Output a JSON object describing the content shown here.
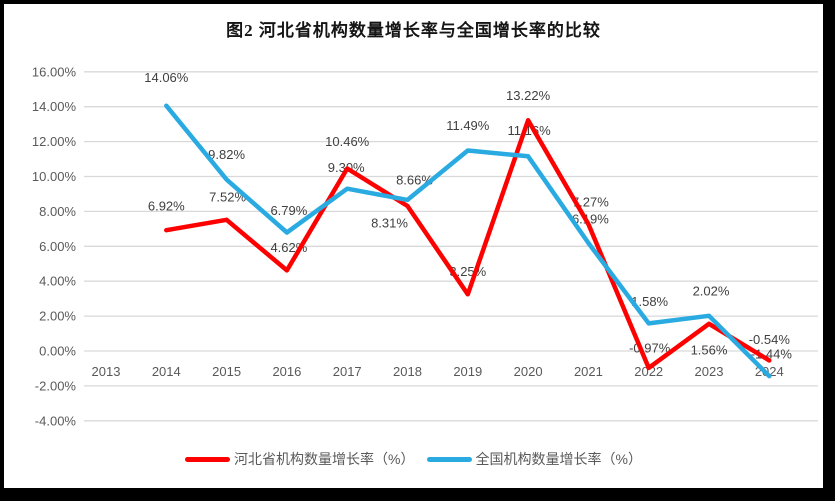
{
  "window": {
    "frame_color": "#000000",
    "canvas_color": "#ffffff"
  },
  "chart_data": {
    "type": "line",
    "title": "图2 河北省机构数量增长率与全国增长率的比较",
    "categories": [
      "2013",
      "2014",
      "2015",
      "2016",
      "2017",
      "2018",
      "2019",
      "2020",
      "2021",
      "2022",
      "2023",
      "2024"
    ],
    "y_axis": {
      "min": -4,
      "max": 16,
      "step": 2,
      "tick_labels": [
        "16.00%",
        "14.00%",
        "12.00%",
        "10.00%",
        "8.00%",
        "6.00%",
        "4.00%",
        "2.00%",
        "0.00%",
        "-2.00%",
        "-4.00%"
      ],
      "format": "0.00%"
    },
    "grid": true,
    "gridline_color": "#D9D9D9",
    "legend_position": "bottom",
    "series": [
      {
        "name": "河北省机构数量增长率（%）",
        "color": "#FF0000",
        "values": [
          null,
          6.92,
          7.52,
          4.62,
          10.46,
          8.31,
          3.25,
          13.22,
          7.27,
          -0.97,
          1.56,
          -0.54
        ],
        "data_labels": [
          null,
          "6.92%",
          "7.52%",
          "4.62%",
          "10.46%",
          "8.31%",
          "3.25%",
          "13.22%",
          "7.27%",
          "-0.97%",
          "1.56%",
          "-0.54%"
        ],
        "label_offsets": [
          null,
          [
            0,
            -24
          ],
          [
            1,
            -23
          ],
          [
            2,
            -23
          ],
          [
            0,
            -27
          ],
          [
            -18,
            17
          ],
          [
            0,
            -23
          ],
          [
            0,
            -25
          ],
          [
            2,
            -22
          ],
          [
            1,
            -20
          ],
          [
            0,
            26
          ],
          [
            0,
            -21
          ]
        ]
      },
      {
        "name": "全国机构数量增长率（%）",
        "color": "#29ABE2",
        "values": [
          null,
          14.06,
          9.82,
          6.79,
          9.3,
          8.66,
          11.49,
          11.16,
          6.19,
          1.58,
          2.02,
          -1.44
        ],
        "data_labels": [
          null,
          "14.06%",
          "9.82%",
          "6.79%",
          "9.30%",
          "8.66%",
          "11.49%",
          "11.16%",
          "6.19%",
          "1.58%",
          "2.02%",
          "-1.44%"
        ],
        "label_offsets": [
          null,
          [
            0,
            -28
          ],
          [
            0,
            -25
          ],
          [
            2,
            -22
          ],
          [
            -1,
            -21
          ],
          [
            7,
            -20
          ],
          [
            0,
            -25
          ],
          [
            1,
            -26
          ],
          [
            2,
            -24
          ],
          [
            1,
            -22
          ],
          [
            2,
            -25
          ],
          [
            2,
            -22
          ]
        ]
      }
    ]
  }
}
